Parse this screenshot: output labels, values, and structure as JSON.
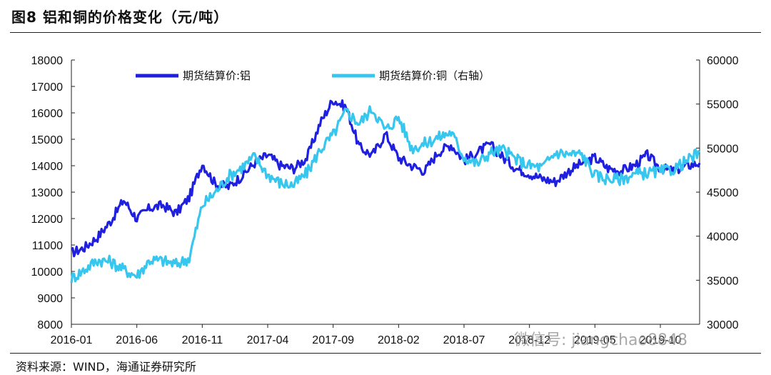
{
  "figure": {
    "title": "图8  铝和铜的价格变化（元/吨）",
    "source": "资料来源：WIND，海通证券研究所",
    "watermark": "微信号: jiangchao8848"
  },
  "chart_data": {
    "type": "line",
    "title": "图8  铝和铜的价格变化（元/吨）",
    "xlabel": "",
    "ylabel": "",
    "x_tick_labels": [
      "2016-01",
      "2016-06",
      "2016-11",
      "2017-04",
      "2017-09",
      "2018-02",
      "2018-07",
      "2018-12",
      "2019-05",
      "2019-10"
    ],
    "x": [
      "2016-01",
      "2016-02",
      "2016-03",
      "2016-04",
      "2016-05",
      "2016-06",
      "2016-07",
      "2016-08",
      "2016-09",
      "2016-10",
      "2016-11",
      "2016-12",
      "2017-01",
      "2017-02",
      "2017-03",
      "2017-04",
      "2017-05",
      "2017-06",
      "2017-07",
      "2017-08",
      "2017-09",
      "2017-10",
      "2017-11",
      "2017-12",
      "2018-01",
      "2018-02",
      "2018-03",
      "2018-04",
      "2018-05",
      "2018-06",
      "2018-07",
      "2018-08",
      "2018-09",
      "2018-10",
      "2018-11",
      "2018-12",
      "2019-01",
      "2019-02",
      "2019-03",
      "2019-04",
      "2019-05",
      "2019-06",
      "2019-07",
      "2019-08",
      "2019-09",
      "2019-10",
      "2019-11",
      "2019-12",
      "2020-01"
    ],
    "y_left": {
      "min": 8000,
      "max": 18000,
      "step": 1000,
      "ticks": [
        8000,
        9000,
        10000,
        11000,
        12000,
        13000,
        14000,
        15000,
        16000,
        17000,
        18000
      ]
    },
    "y_right": {
      "min": 30000,
      "max": 60000,
      "step": 5000,
      "ticks": [
        30000,
        35000,
        40000,
        45000,
        50000,
        55000,
        60000
      ]
    },
    "legend_position": "top",
    "grid": false,
    "series": [
      {
        "name": "期货结算价:铝",
        "axis": "left",
        "color": "#1f1fe0",
        "values": [
          10700,
          10900,
          11300,
          11900,
          12700,
          12000,
          12400,
          12500,
          12200,
          12800,
          14100,
          13300,
          13200,
          13600,
          14100,
          14400,
          14000,
          13900,
          14300,
          15600,
          16500,
          16200,
          14700,
          14400,
          15200,
          14300,
          14000,
          13800,
          14500,
          14800,
          14200,
          14500,
          14800,
          14300,
          13900,
          13700,
          13500,
          13400,
          13800,
          14100,
          14300,
          13900,
          13800,
          14000,
          14400,
          13900,
          13800,
          14000,
          14100
        ]
      },
      {
        "name": "期货结算价:铜（右轴）",
        "axis": "right",
        "color": "#37c7ee",
        "values": [
          35200,
          36200,
          37300,
          37100,
          36200,
          35500,
          37300,
          37200,
          36800,
          37500,
          43500,
          45000,
          46800,
          47800,
          49000,
          47000,
          46000,
          45800,
          47200,
          49800,
          51500,
          54200,
          52800,
          54500,
          52000,
          53500,
          50000,
          50500,
          51200,
          51800,
          49000,
          48200,
          49500,
          49800,
          48700,
          48000,
          47800,
          49500,
          49300,
          49300,
          46900,
          46500,
          46500,
          47000,
          47200,
          47300,
          47600,
          48500,
          49500
        ]
      }
    ]
  }
}
